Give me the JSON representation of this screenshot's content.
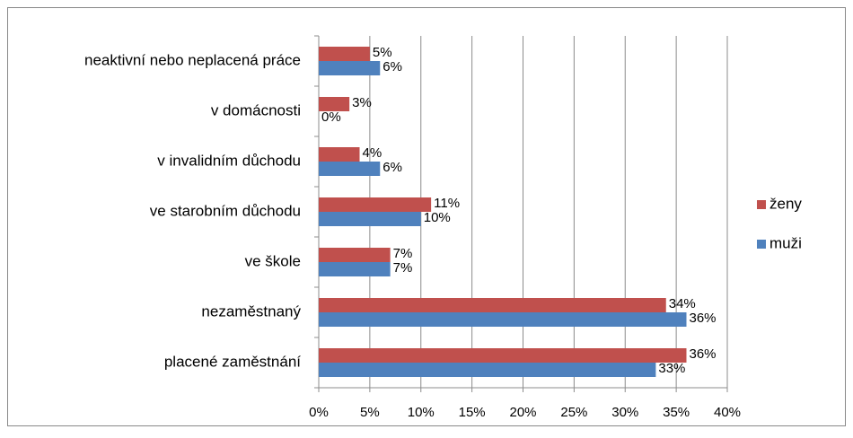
{
  "chart_data": {
    "type": "bar",
    "orientation": "horizontal",
    "categories": [
      "neaktivní nebo neplacená práce",
      "v domácnosti",
      "v invalidním důchodu",
      "ve starobním důchodu",
      "ve škole",
      "nezaměstnaný",
      "placené zaměstnání"
    ],
    "series": [
      {
        "name": "ženy",
        "color": "#c0504d",
        "values": [
          5,
          3,
          4,
          11,
          7,
          34,
          36
        ],
        "value_labels": [
          "5%",
          "3%",
          "4%",
          "11%",
          "7%",
          "34%",
          "36%"
        ]
      },
      {
        "name": "muži",
        "color": "#4f81bd",
        "values": [
          6,
          0,
          6,
          10,
          7,
          36,
          33
        ],
        "value_labels": [
          "6%",
          "0%",
          "6%",
          "10%",
          "7%",
          "36%",
          "33%"
        ]
      }
    ],
    "xlim": [
      0,
      40
    ],
    "xticks": [
      {
        "value": 0,
        "label": "0%"
      },
      {
        "value": 5,
        "label": "5%"
      },
      {
        "value": 10,
        "label": "10%"
      },
      {
        "value": 15,
        "label": "15%"
      },
      {
        "value": 20,
        "label": "20%"
      },
      {
        "value": 25,
        "label": "25%"
      },
      {
        "value": 30,
        "label": "30%"
      },
      {
        "value": 35,
        "label": "35%"
      },
      {
        "value": 40,
        "label": "40%"
      }
    ],
    "grid": true,
    "legend": "right"
  }
}
